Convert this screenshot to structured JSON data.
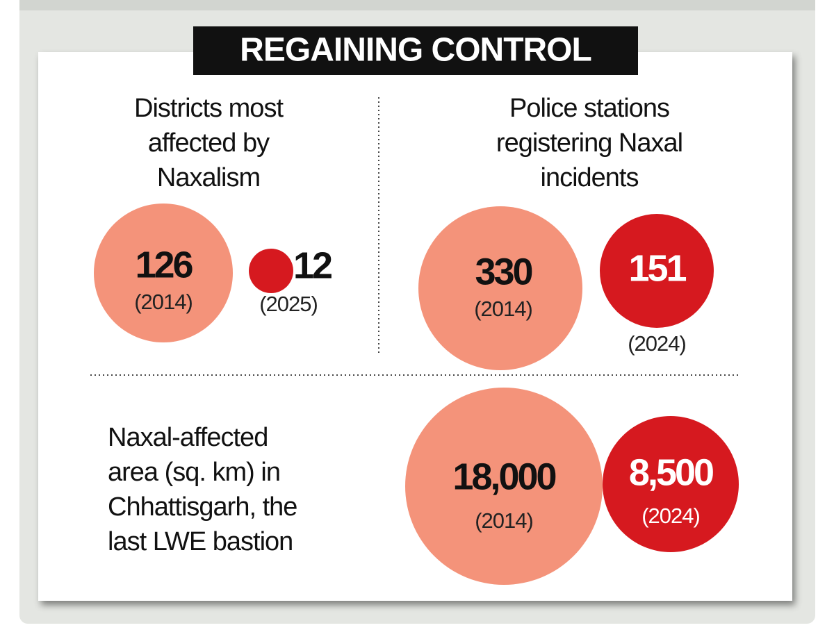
{
  "title": "REGAINING CONTROL",
  "panels": [
    {
      "label_lines": [
        "Districts most",
        "affected by",
        "Naxalism"
      ],
      "items": [
        {
          "value": "126",
          "year": "(2014)"
        },
        {
          "value": "12",
          "year": "(2025)"
        }
      ]
    },
    {
      "label_lines": [
        "Police stations",
        "registering Naxal",
        "incidents"
      ],
      "items": [
        {
          "value": "330",
          "year": "(2014)"
        },
        {
          "value": "151",
          "year": "(2024)"
        }
      ]
    },
    {
      "label_lines": [
        "Naxal-affected",
        "area (sq. km) in",
        "Chhattisgarh, the",
        "last LWE bastion"
      ],
      "items": [
        {
          "value": "18,000",
          "year": "(2014)"
        },
        {
          "value": "8,500",
          "year": "(2024)"
        }
      ]
    }
  ]
}
